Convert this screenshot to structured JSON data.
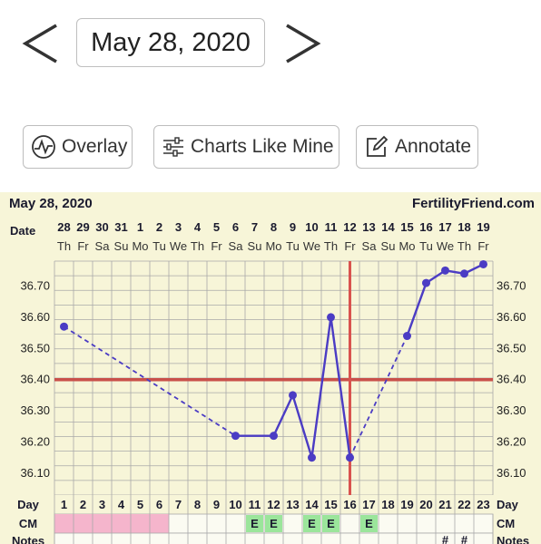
{
  "nav": {
    "current_date": "May 28, 2020",
    "prev_icon": "chevron-left-icon",
    "next_icon": "chevron-right-icon"
  },
  "toolbar": {
    "overlay_label": "Overlay",
    "overlay_icon": "pulse-circle-icon",
    "charts_like_mine_label": "Charts Like Mine",
    "charts_like_mine_icon": "sliders-icon",
    "annotate_label": "Annotate",
    "annotate_icon": "edit-icon"
  },
  "chart_header": {
    "date": "May 28, 2020",
    "brand": "FertilityFriend.com"
  },
  "chart_data": {
    "type": "line",
    "date_row_label": "Date",
    "dates": [
      "28",
      "29",
      "30",
      "31",
      "1",
      "2",
      "3",
      "4",
      "5",
      "6",
      "7",
      "8",
      "9",
      "10",
      "11",
      "12",
      "13",
      "14",
      "15",
      "16",
      "17",
      "18",
      "19"
    ],
    "weekdays": [
      "Th",
      "Fr",
      "Sa",
      "Su",
      "Mo",
      "Tu",
      "We",
      "Th",
      "Fr",
      "Sa",
      "Su",
      "Mo",
      "Tu",
      "We",
      "Th",
      "Fr",
      "Sa",
      "Su",
      "Mo",
      "Tu",
      "We",
      "Th",
      "Fr"
    ],
    "day_row_label": "Day",
    "days": [
      "1",
      "2",
      "3",
      "4",
      "5",
      "6",
      "7",
      "8",
      "9",
      "10",
      "11",
      "12",
      "13",
      "14",
      "15",
      "16",
      "17",
      "18",
      "19",
      "20",
      "21",
      "22",
      "23"
    ],
    "y_ticks": [
      "36.70",
      "36.60",
      "36.50",
      "36.40",
      "36.30",
      "36.20",
      "36.10"
    ],
    "ylim": [
      36.03,
      36.78
    ],
    "temperatures": [
      {
        "day": 1,
        "temp": 36.57
      },
      {
        "day": 10,
        "temp": 36.22
      },
      {
        "day": 12,
        "temp": 36.22
      },
      {
        "day": 13,
        "temp": 36.35
      },
      {
        "day": 14,
        "temp": 36.15
      },
      {
        "day": 15,
        "temp": 36.6
      },
      {
        "day": 16,
        "temp": 36.15
      },
      {
        "day": 19,
        "temp": 36.54
      },
      {
        "day": 20,
        "temp": 36.71
      },
      {
        "day": 21,
        "temp": 36.75
      },
      {
        "day": 22,
        "temp": 36.74
      },
      {
        "day": 23,
        "temp": 36.77
      }
    ],
    "solid_segments": [
      [
        10,
        12
      ],
      [
        12,
        13
      ],
      [
        13,
        14
      ],
      [
        14,
        15
      ],
      [
        15,
        16
      ],
      [
        19,
        20
      ],
      [
        20,
        21
      ],
      [
        21,
        22
      ],
      [
        22,
        23
      ]
    ],
    "dashed_segments": [
      [
        1,
        10
      ],
      [
        16,
        19
      ]
    ],
    "coverline_temp": 36.4,
    "ovulation_day": 16,
    "cm_row_label": "CM",
    "cm_period_days": [
      1,
      2,
      3,
      4,
      5,
      6
    ],
    "cm_marks": [
      {
        "day": 11,
        "label": "E"
      },
      {
        "day": 12,
        "label": "E"
      },
      {
        "day": 14,
        "label": "E"
      },
      {
        "day": 15,
        "label": "E"
      },
      {
        "day": 17,
        "label": "E"
      }
    ],
    "notes_row_label": "Notes",
    "notes_marks": [
      {
        "day": 21,
        "label": "#"
      },
      {
        "day": 22,
        "label": "#"
      }
    ],
    "colors": {
      "line": "#4b3cc4",
      "coverline": "#c9504a",
      "ovulation": "#d9534f",
      "grid": "#a9a9a9",
      "period": "#f5b5cc",
      "cm_mark": "#9be59b",
      "background": "#f7f5d8"
    }
  }
}
